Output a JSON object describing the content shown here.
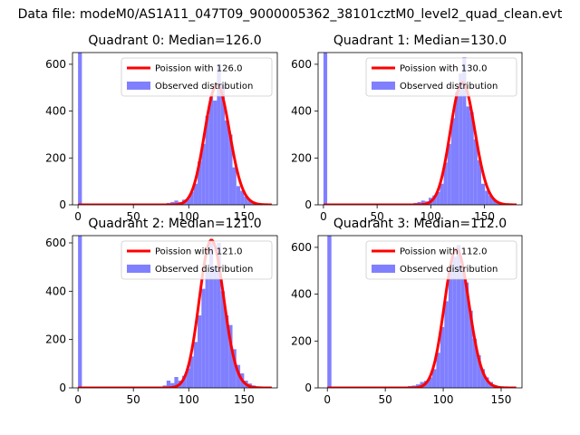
{
  "figure": {
    "suptitle": "Data file: modeM0/AS1A11_047T09_9000005362_38101cztM0_level2_quad_clean.evt"
  },
  "chart_data": [
    {
      "type": "bar",
      "title": "Quadrant 0: Median=126.0",
      "xlim": [
        -5,
        180
      ],
      "ylim": [
        0,
        650
      ],
      "xticks": [
        0,
        50,
        100,
        150
      ],
      "yticks": [
        0,
        200,
        400,
        600
      ],
      "legend_placement": "upper-right",
      "series": [
        {
          "name": "Poission with 126.0",
          "kind": "line",
          "color": "#ff0000",
          "mean": 126.0
        },
        {
          "name": "Observed distribution",
          "kind": "histogram",
          "color": "#8080ff",
          "bin_width": 3.5,
          "bins": [
            {
              "x": 0,
              "count": 650
            },
            {
              "x": 80,
              "count": 8
            },
            {
              "x": 83.5,
              "count": 12
            },
            {
              "x": 87,
              "count": 18
            },
            {
              "x": 90.5,
              "count": 12
            },
            {
              "x": 94,
              "count": 22
            },
            {
              "x": 97.5,
              "count": 25
            },
            {
              "x": 101,
              "count": 55
            },
            {
              "x": 104.5,
              "count": 90
            },
            {
              "x": 108,
              "count": 185
            },
            {
              "x": 111.5,
              "count": 260
            },
            {
              "x": 115,
              "count": 380
            },
            {
              "x": 118.5,
              "count": 460
            },
            {
              "x": 122,
              "count": 445
            },
            {
              "x": 125.5,
              "count": 600
            },
            {
              "x": 129,
              "count": 510
            },
            {
              "x": 132.5,
              "count": 360
            },
            {
              "x": 136,
              "count": 300
            },
            {
              "x": 139.5,
              "count": 160
            },
            {
              "x": 143,
              "count": 80
            },
            {
              "x": 146.5,
              "count": 60
            },
            {
              "x": 150,
              "count": 35
            },
            {
              "x": 153.5,
              "count": 18
            },
            {
              "x": 157,
              "count": 12
            },
            {
              "x": 160.5,
              "count": 7
            },
            {
              "x": 164,
              "count": 4
            },
            {
              "x": 167.5,
              "count": 2
            }
          ]
        }
      ]
    },
    {
      "type": "bar",
      "title": "Quadrant 1: Median=130.0",
      "xlim": [
        -5,
        185
      ],
      "ylim": [
        0,
        650
      ],
      "xticks": [
        0,
        50,
        100,
        150
      ],
      "yticks": [
        0,
        200,
        400,
        600
      ],
      "legend_placement": "upper-right",
      "series": [
        {
          "name": "Poission with 130.0",
          "kind": "line",
          "color": "#ff0000",
          "mean": 130.0
        },
        {
          "name": "Observed distribution",
          "kind": "histogram",
          "color": "#8080ff",
          "bin_width": 3.5,
          "bins": [
            {
              "x": 0,
              "count": 650
            },
            {
              "x": 84,
              "count": 8
            },
            {
              "x": 87.5,
              "count": 12
            },
            {
              "x": 91,
              "count": 18
            },
            {
              "x": 94.5,
              "count": 15
            },
            {
              "x": 98,
              "count": 30
            },
            {
              "x": 101.5,
              "count": 40
            },
            {
              "x": 105,
              "count": 55
            },
            {
              "x": 108.5,
              "count": 90
            },
            {
              "x": 112,
              "count": 180
            },
            {
              "x": 115.5,
              "count": 260
            },
            {
              "x": 119,
              "count": 370
            },
            {
              "x": 122.5,
              "count": 480
            },
            {
              "x": 126,
              "count": 560
            },
            {
              "x": 129.5,
              "count": 630
            },
            {
              "x": 133,
              "count": 420
            },
            {
              "x": 136.5,
              "count": 395
            },
            {
              "x": 140,
              "count": 280
            },
            {
              "x": 143.5,
              "count": 190
            },
            {
              "x": 147,
              "count": 90
            },
            {
              "x": 150.5,
              "count": 60
            },
            {
              "x": 154,
              "count": 40
            },
            {
              "x": 157.5,
              "count": 22
            },
            {
              "x": 161,
              "count": 12
            },
            {
              "x": 164.5,
              "count": 8
            },
            {
              "x": 168,
              "count": 4
            }
          ]
        }
      ]
    },
    {
      "type": "bar",
      "title": "Quadrant 2: Median=121.0",
      "xlim": [
        -5,
        180
      ],
      "ylim": [
        0,
        630
      ],
      "xticks": [
        0,
        50,
        100,
        150
      ],
      "yticks": [
        0,
        200,
        400,
        600
      ],
      "legend_placement": "upper-right",
      "series": [
        {
          "name": "Poission with 121.0",
          "kind": "line",
          "color": "#ff0000",
          "mean": 121.0
        },
        {
          "name": "Observed distribution",
          "kind": "histogram",
          "color": "#8080ff",
          "bin_width": 3.5,
          "bins": [
            {
              "x": 0,
              "count": 630
            },
            {
              "x": 73,
              "count": 5
            },
            {
              "x": 76.5,
              "count": 10
            },
            {
              "x": 80,
              "count": 30
            },
            {
              "x": 83.5,
              "count": 20
            },
            {
              "x": 87,
              "count": 45
            },
            {
              "x": 90.5,
              "count": 30
            },
            {
              "x": 94,
              "count": 50
            },
            {
              "x": 97.5,
              "count": 80
            },
            {
              "x": 101,
              "count": 130
            },
            {
              "x": 104.5,
              "count": 190
            },
            {
              "x": 108,
              "count": 300
            },
            {
              "x": 111.5,
              "count": 410
            },
            {
              "x": 115,
              "count": 480
            },
            {
              "x": 118.5,
              "count": 600
            },
            {
              "x": 122,
              "count": 500
            },
            {
              "x": 125.5,
              "count": 600
            },
            {
              "x": 129,
              "count": 400
            },
            {
              "x": 132.5,
              "count": 300
            },
            {
              "x": 136,
              "count": 260
            },
            {
              "x": 139.5,
              "count": 160
            },
            {
              "x": 143,
              "count": 95
            },
            {
              "x": 146.5,
              "count": 60
            },
            {
              "x": 150,
              "count": 30
            },
            {
              "x": 153.5,
              "count": 18
            },
            {
              "x": 157,
              "count": 10
            },
            {
              "x": 160.5,
              "count": 5
            }
          ]
        }
      ]
    },
    {
      "type": "bar",
      "title": "Quadrant 3: Median=112.0",
      "xlim": [
        -8,
        168
      ],
      "ylim": [
        0,
        650
      ],
      "xticks": [
        0,
        50,
        100,
        150
      ],
      "yticks": [
        0,
        200,
        400,
        600
      ],
      "legend_placement": "upper-right",
      "series": [
        {
          "name": "Poission with 112.0",
          "kind": "line",
          "color": "#ff0000",
          "mean": 112.0
        },
        {
          "name": "Observed distribution",
          "kind": "histogram",
          "color": "#8080ff",
          "bin_width": 3.5,
          "bins": [
            {
              "x": 0,
              "count": 650
            },
            {
              "x": 66,
              "count": 5
            },
            {
              "x": 69.5,
              "count": 8
            },
            {
              "x": 73,
              "count": 10
            },
            {
              "x": 76.5,
              "count": 15
            },
            {
              "x": 80,
              "count": 25
            },
            {
              "x": 83.5,
              "count": 30
            },
            {
              "x": 87,
              "count": 45
            },
            {
              "x": 90.5,
              "count": 80
            },
            {
              "x": 94,
              "count": 150
            },
            {
              "x": 97.5,
              "count": 260
            },
            {
              "x": 101,
              "count": 370
            },
            {
              "x": 104.5,
              "count": 500
            },
            {
              "x": 108,
              "count": 560
            },
            {
              "x": 111.5,
              "count": 610
            },
            {
              "x": 115,
              "count": 520
            },
            {
              "x": 118.5,
              "count": 450
            },
            {
              "x": 122,
              "count": 330
            },
            {
              "x": 125.5,
              "count": 210
            },
            {
              "x": 129,
              "count": 140
            },
            {
              "x": 132.5,
              "count": 80
            },
            {
              "x": 136,
              "count": 45
            },
            {
              "x": 139.5,
              "count": 25
            },
            {
              "x": 143,
              "count": 12
            },
            {
              "x": 146.5,
              "count": 6
            },
            {
              "x": 150,
              "count": 3
            }
          ]
        }
      ]
    }
  ]
}
